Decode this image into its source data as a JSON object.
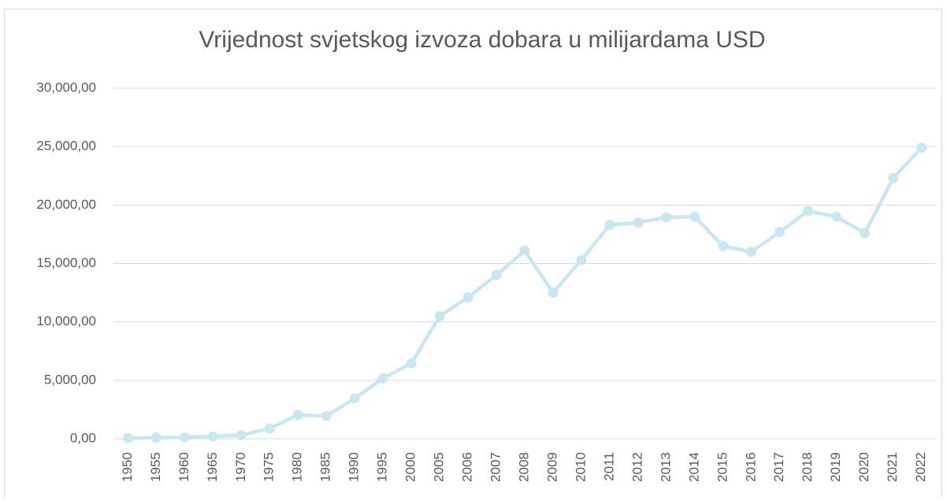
{
  "chart_data": {
    "type": "line",
    "title": "Vrijednost svjetskog izvoza dobara u milijardama USD",
    "categories": [
      "1950",
      "1955",
      "1960",
      "1965",
      "1970",
      "1975",
      "1980",
      "1985",
      "1990",
      "1995",
      "2000",
      "2005",
      "2006",
      "2007",
      "2008",
      "2009",
      "2010",
      "2011",
      "2012",
      "2013",
      "2014",
      "2015",
      "2016",
      "2017",
      "2018",
      "2019",
      "2020",
      "2021",
      "2022"
    ],
    "values": [
      60,
      95,
      130,
      190,
      315,
      877,
      2030,
      1950,
      3450,
      5170,
      6450,
      10500,
      12100,
      14000,
      16100,
      12500,
      15300,
      18300,
      18500,
      18950,
      19000,
      16500,
      16000,
      17700,
      19500,
      19000,
      17600,
      22300,
      24900
    ],
    "color": "#c9e7f2",
    "ylim": [
      0,
      30000
    ],
    "yticks": [
      {
        "value": 0,
        "label": "0,00"
      },
      {
        "value": 5000,
        "label": "5,000,00"
      },
      {
        "value": 10000,
        "label": "10,000,00"
      },
      {
        "value": 15000,
        "label": "15,000,00"
      },
      {
        "value": 20000,
        "label": "20,000,00"
      },
      {
        "value": 25000,
        "label": "25,000,00"
      },
      {
        "value": 30000,
        "label": "30,000,00"
      }
    ],
    "grid": true
  }
}
